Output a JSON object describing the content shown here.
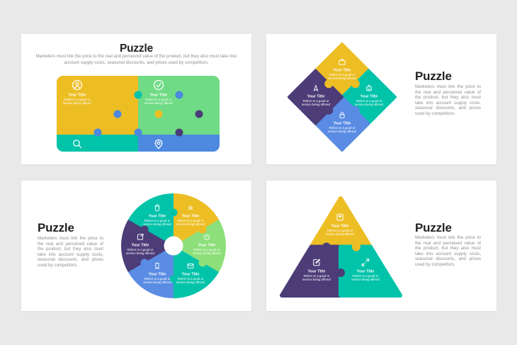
{
  "app": {
    "background": "#E9E9E9",
    "card_background": "#FFFFFF"
  },
  "colors": {
    "yellow": "#EDBE24",
    "green": "#6FDB85",
    "light_green": "#8CDF7A",
    "teal": "#00C3A9",
    "blue": "#4C89DF",
    "light_blue": "#5A8CE4",
    "purple": "#4C3C78",
    "title_text": "#1F1F1F",
    "body_text": "#8F8F8F",
    "piece_text": "#FFFFFF"
  },
  "shared": {
    "piece_title": "Your Title",
    "piece_desc": "Refers to a good or service being offered",
    "intro": "Marketers must link the price to the real and perceived value of the product, but they also must take into account supply costs, seasonal discounts, and prices used by competitors."
  },
  "slides": [
    {
      "id": "grid-puzzle",
      "title": "Puzzle",
      "pieces": [
        {
          "icon": "user-circle-icon",
          "color": "yellow"
        },
        {
          "icon": "check-circle-icon",
          "color": "green"
        },
        {
          "icon": "clock-icon",
          "color": "teal"
        },
        {
          "icon": "wifi-icon",
          "color": "blue"
        },
        {
          "icon": "search-icon",
          "color": "teal"
        },
        {
          "icon": "map-pin-icon",
          "color": "blue"
        },
        {
          "icon": "bell-icon",
          "color": "yellow"
        },
        {
          "icon": "heart-icon",
          "color": "purple"
        }
      ]
    },
    {
      "id": "diamond-puzzle",
      "title": "Puzzle",
      "pieces": [
        {
          "icon": "briefcase-icon",
          "color": "yellow",
          "position": "top"
        },
        {
          "icon": "robot-icon",
          "color": "teal",
          "position": "right"
        },
        {
          "icon": "lock-icon",
          "color": "light_blue",
          "position": "bottom"
        },
        {
          "icon": "navigation-icon",
          "color": "purple",
          "position": "left"
        }
      ]
    },
    {
      "id": "circle-puzzle",
      "title": "Puzzle",
      "pieces": [
        {
          "icon": "trash-icon",
          "color": "teal",
          "position": "top-left"
        },
        {
          "icon": "bar-chart-icon",
          "color": "yellow",
          "position": "top-right"
        },
        {
          "icon": "power-icon",
          "color": "light_green",
          "position": "right"
        },
        {
          "icon": "mail-icon",
          "color": "teal",
          "position": "bottom-right"
        },
        {
          "icon": "bookmark-icon",
          "color": "light_blue",
          "position": "bottom-left"
        },
        {
          "icon": "external-link-icon",
          "color": "purple",
          "position": "left"
        }
      ]
    },
    {
      "id": "triangle-puzzle",
      "title": "Puzzle",
      "pieces": [
        {
          "icon": "download-icon",
          "color": "yellow",
          "position": "top"
        },
        {
          "icon": "edit-icon",
          "color": "purple",
          "position": "bottom-left"
        },
        {
          "icon": "expand-icon",
          "color": "teal",
          "position": "bottom-right"
        }
      ]
    }
  ]
}
